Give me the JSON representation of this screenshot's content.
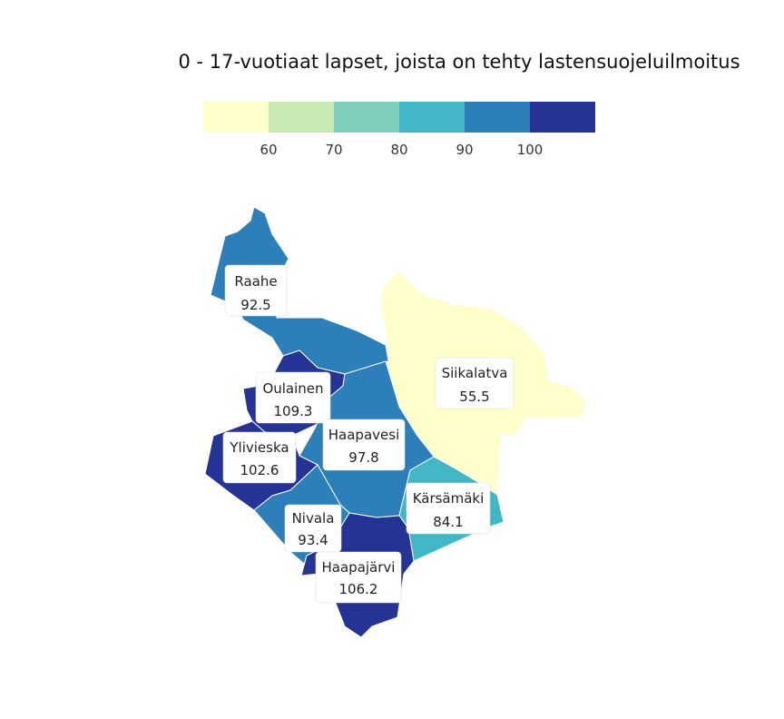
{
  "title": "0 - 17-vuotiaat lapset, joista on tehty lastensuojeluilmoitus",
  "legend": {
    "colors": [
      "#ffffcc",
      "#c7e9b4",
      "#7fcdbb",
      "#41b6c4",
      "#2c7fb8",
      "#253494"
    ],
    "ticks": [
      "60",
      "70",
      "80",
      "90",
      "100"
    ]
  },
  "chart_data": {
    "type": "choropleth",
    "title": "0 - 17-vuotiaat lapset, joista on tehty lastensuojeluilmoitus",
    "breaks": [
      60,
      70,
      80,
      90,
      100
    ],
    "regions": [
      {
        "name": "Raahe",
        "value": 92.5
      },
      {
        "name": "Siikalatva",
        "value": 55.5
      },
      {
        "name": "Oulainen",
        "value": 109.3
      },
      {
        "name": "Haapavesi",
        "value": 97.8
      },
      {
        "name": "Ylivieska",
        "value": 102.6
      },
      {
        "name": "Kärsämäki",
        "value": 84.1
      },
      {
        "name": "Nivala",
        "value": 93.4
      },
      {
        "name": "Haapajärvi",
        "value": 106.2
      }
    ]
  }
}
